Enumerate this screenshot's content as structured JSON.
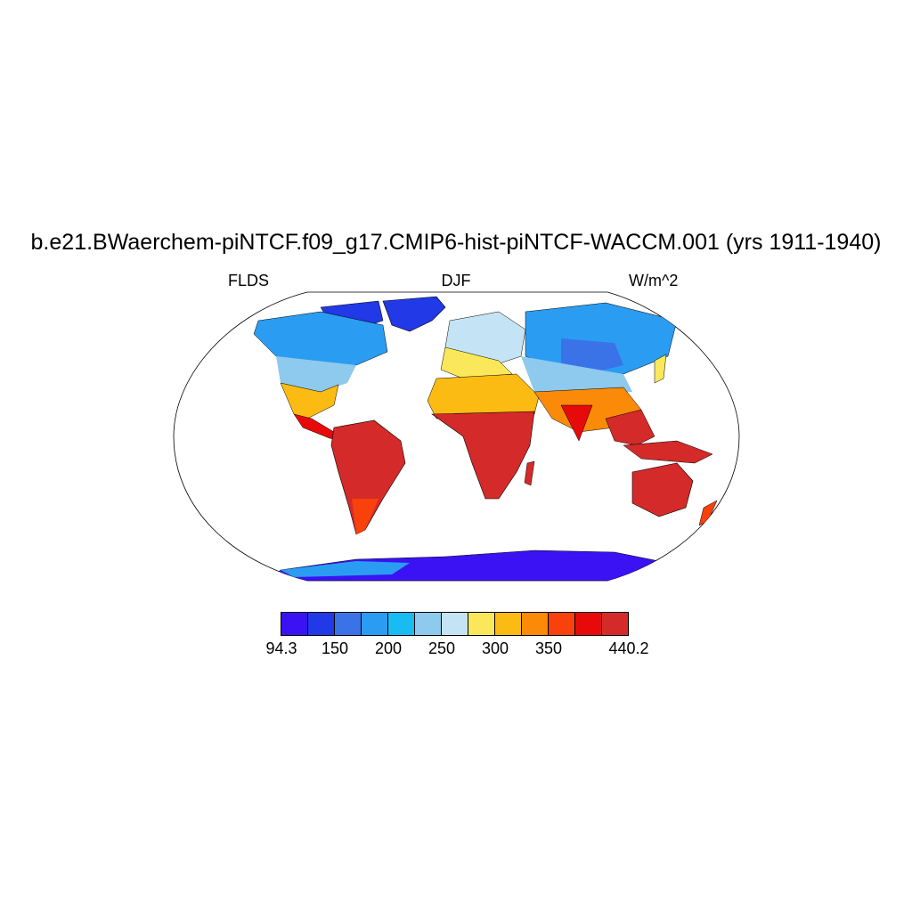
{
  "title": "b.e21.BWaerchem-piNTCF.f09_g17.CMIP6-hist-piNTCF-WACCM.001 (yrs 1911-1940)",
  "left_label": "FLDS",
  "center_label": "DJF",
  "right_label": "W/m^2",
  "colorbar": {
    "colors": [
      "#3a12f4",
      "#2139e6",
      "#3a73e8",
      "#2a9df2",
      "#18bbf2",
      "#8ec9ee",
      "#c4e4f5",
      "#fbe85a",
      "#fbbb12",
      "#fb8a08",
      "#f9410c",
      "#e80a0a",
      "#d42a2a"
    ],
    "labels": [
      "94.3",
      "150",
      "200",
      "250",
      "300",
      "350",
      "440.2"
    ],
    "label_positions": [
      0,
      2,
      4,
      6,
      8,
      10,
      13
    ]
  }
}
